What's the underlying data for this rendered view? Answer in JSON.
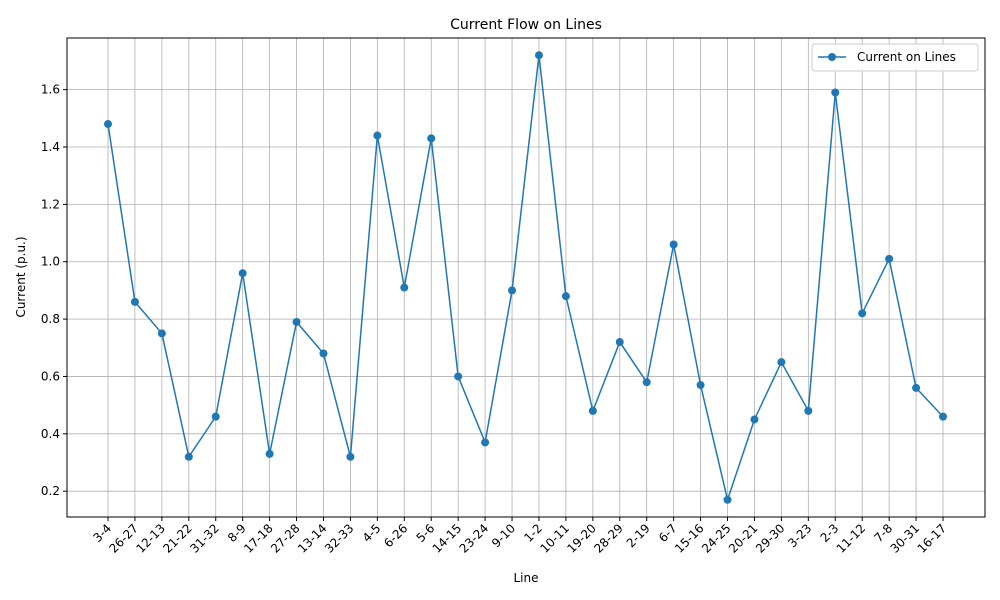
{
  "chart_data": {
    "type": "line",
    "title": "Current Flow on Lines",
    "xlabel": "Line",
    "ylabel": "Current (p.u.)",
    "categories": [
      "3-4",
      "26-27",
      "12-13",
      "21-22",
      "31-32",
      "8-9",
      "17-18",
      "27-28",
      "13-14",
      "32-33",
      "4-5",
      "6-26",
      "5-6",
      "14-15",
      "23-24",
      "9-10",
      "1-2",
      "10-11",
      "19-20",
      "28-29",
      "2-19",
      "6-7",
      "15-16",
      "24-25",
      "20-21",
      "29-30",
      "3-23",
      "2-3",
      "11-12",
      "7-8",
      "30-31",
      "16-17"
    ],
    "series": [
      {
        "name": "Current on Lines",
        "color": "#1f77b4",
        "marker": "circle",
        "values": [
          1.48,
          0.86,
          0.75,
          0.32,
          0.46,
          0.96,
          0.33,
          0.79,
          0.68,
          0.32,
          1.44,
          0.91,
          1.43,
          0.6,
          0.37,
          0.9,
          1.72,
          0.88,
          0.48,
          0.72,
          0.58,
          1.06,
          0.57,
          0.17,
          0.45,
          0.65,
          0.48,
          1.59,
          0.82,
          1.01,
          0.56,
          0.46
        ]
      }
    ],
    "ylim": [
      0.11,
      1.78
    ],
    "yticks": [
      "0.2",
      "0.4",
      "0.6",
      "0.8",
      "1.0",
      "1.2",
      "1.4",
      "1.6"
    ],
    "grid": true,
    "legend_position": "top-right"
  }
}
